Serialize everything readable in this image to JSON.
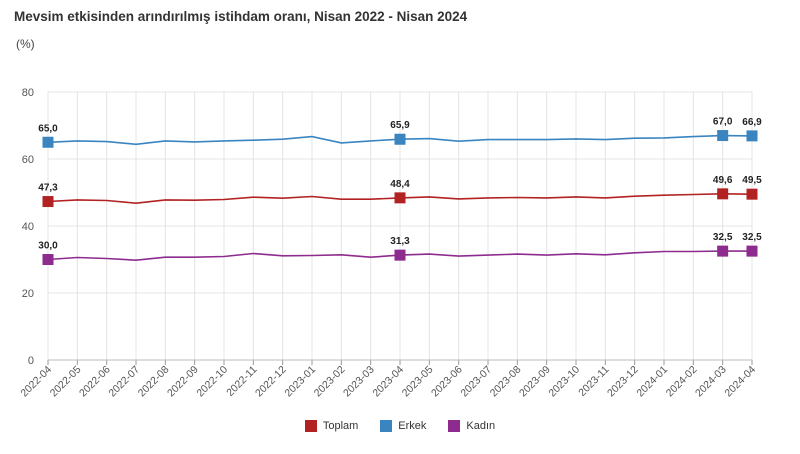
{
  "chart_data": {
    "type": "line",
    "title": "Mevsim etkisinden arındırılmış istihdam oranı, Nisan 2022 - Nisan 2024",
    "ylabel": "(%)",
    "xlabel": "",
    "ylim": [
      0,
      80
    ],
    "yticks": [
      0,
      20,
      40,
      60,
      80
    ],
    "grid": true,
    "legend_position": "bottom-center",
    "categories": [
      "2022-04",
      "2022-05",
      "2022-06",
      "2022-07",
      "2022-08",
      "2022-09",
      "2022-10",
      "2022-11",
      "2022-12",
      "2023-01",
      "2023-02",
      "2023-03",
      "2023-04",
      "2023-05",
      "2023-06",
      "2023-07",
      "2023-08",
      "2023-09",
      "2023-10",
      "2023-11",
      "2023-12",
      "2024-01",
      "2024-02",
      "2024-03",
      "2024-04"
    ],
    "series": [
      {
        "name": "Toplam",
        "color": "#b22222",
        "values": [
          47.3,
          47.8,
          47.6,
          46.8,
          47.8,
          47.7,
          47.9,
          48.6,
          48.3,
          48.8,
          48.0,
          48.0,
          48.4,
          48.7,
          48.1,
          48.4,
          48.5,
          48.4,
          48.7,
          48.4,
          48.9,
          49.2,
          49.4,
          49.6,
          49.5
        ],
        "labeled_indices": [
          0,
          12,
          23,
          24
        ],
        "labels": [
          "47,3",
          "48,4",
          "49,6",
          "49,5"
        ]
      },
      {
        "name": "Erkek",
        "color": "#3a85c0",
        "values": [
          65.0,
          65.4,
          65.2,
          64.4,
          65.4,
          65.1,
          65.4,
          65.6,
          65.9,
          66.7,
          64.8,
          65.4,
          65.9,
          66.1,
          65.3,
          65.8,
          65.8,
          65.8,
          66.0,
          65.8,
          66.2,
          66.3,
          66.7,
          67.0,
          66.9
        ],
        "labeled_indices": [
          0,
          12,
          23,
          24
        ],
        "labels": [
          "65,0",
          "65,9",
          "67,0",
          "66,9"
        ]
      },
      {
        "name": "Kadın",
        "color": "#8e2b8e",
        "values": [
          30.0,
          30.6,
          30.3,
          29.8,
          30.7,
          30.7,
          30.9,
          31.8,
          31.1,
          31.2,
          31.4,
          30.7,
          31.3,
          31.6,
          31.0,
          31.3,
          31.6,
          31.3,
          31.7,
          31.4,
          32.0,
          32.4,
          32.4,
          32.5,
          32.5
        ],
        "labeled_indices": [
          0,
          12,
          23,
          24
        ],
        "labels": [
          "30,0",
          "31,3",
          "32,5",
          "32,5"
        ]
      }
    ]
  }
}
